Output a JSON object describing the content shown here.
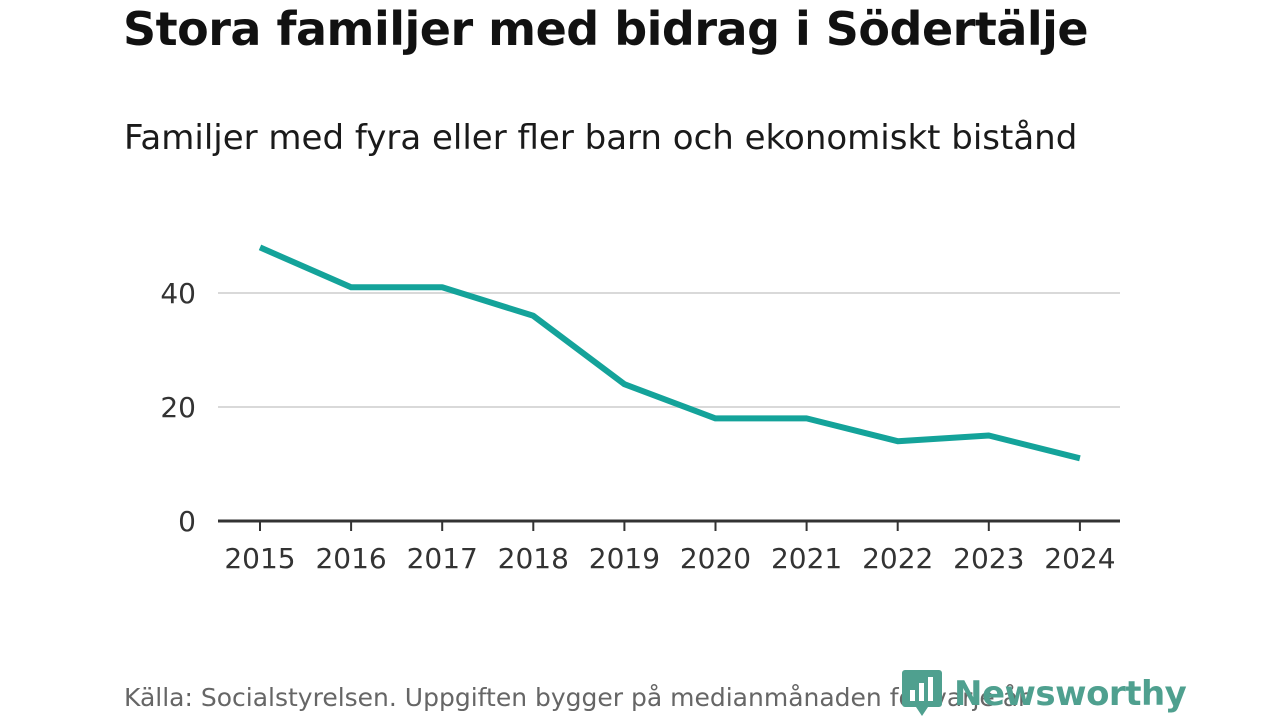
{
  "header": {
    "title": "Stora familjer med bidrag i Södertälje",
    "subtitle": "Familjer med fyra eller fler barn och ekonomiskt bistånd"
  },
  "footer": {
    "source": "Källa: Socialstyrelsen. Uppgiften bygger på medianmånaden för varje år"
  },
  "brand": {
    "name": "Newsworthy",
    "icon": "newsworthy-logo-icon",
    "color": "#4fa08f"
  },
  "colors": {
    "line": "#14a39a",
    "grid": "#d9d9d9",
    "axis": "#333333"
  },
  "chart_data": {
    "type": "line",
    "title": "Stora familjer med bidrag i Södertälje",
    "subtitle": "Familjer med fyra eller fler barn och ekonomiskt bistånd",
    "xlabel": "",
    "ylabel": "",
    "x": [
      "2015",
      "2016",
      "2017",
      "2018",
      "2019",
      "2020",
      "2021",
      "2022",
      "2023",
      "2024"
    ],
    "series": [
      {
        "name": "Familjer med fyra eller fler barn och ekonomiskt bistånd",
        "values": [
          48,
          41,
          41,
          36,
          24,
          18,
          18,
          14,
          15,
          11
        ]
      }
    ],
    "yticks": [
      0,
      20,
      40
    ],
    "ylim": [
      0,
      52
    ],
    "grid": true,
    "legend": "none"
  }
}
